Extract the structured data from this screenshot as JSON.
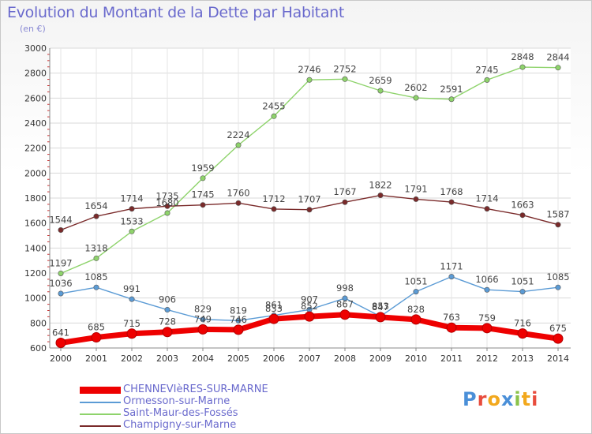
{
  "title": "Evolution du Montant de la Dette par Habitant",
  "unit": "(en €)",
  "logo": {
    "text": "Proxiti",
    "colors": [
      "#4a8fd8",
      "#e84c3d",
      "#f2a81d",
      "#4a8fd8",
      "#8bc34a",
      "#f2a81d",
      "#e84c3d"
    ]
  },
  "chart_data": {
    "type": "line",
    "categories": [
      "2000",
      "2001",
      "2002",
      "2003",
      "2004",
      "2005",
      "2006",
      "2007",
      "2008",
      "2009",
      "2010",
      "2011",
      "2012",
      "2013",
      "2014"
    ],
    "ylim": [
      600,
      3000
    ],
    "yticks": [
      "600",
      "800",
      "1000",
      "1200",
      "1400",
      "1600",
      "1800",
      "2000",
      "2200",
      "2400",
      "2600",
      "2800",
      "3000"
    ],
    "grid": true,
    "legend_position": "bottom-left",
    "series": [
      {
        "name": "CHENNEVIèRES-SUR-MARNE",
        "color": "#ee0000",
        "values": [
          641,
          685,
          715,
          728,
          749,
          746,
          833,
          852,
          867,
          847,
          828,
          763,
          759,
          716,
          675
        ],
        "labels": [
          "641",
          "685",
          "715",
          "728",
          "749",
          "746",
          "833",
          "852",
          "867",
          "847",
          "828",
          "763",
          "759",
          "716",
          "675"
        ]
      },
      {
        "name": "Ormesson-sur-Marne",
        "color": "#5b9bd5",
        "values": [
          1036,
          1085,
          991,
          906,
          829,
          819,
          861,
          907,
          998,
          853,
          1051,
          1171,
          1066,
          1051,
          1085
        ],
        "labels": [
          "1036",
          "1085",
          "991",
          "906",
          "829",
          "819",
          "861",
          "907",
          "998",
          "853",
          "1051",
          "1171",
          "1066",
          "1051",
          "1085"
        ]
      },
      {
        "name": "Saint-Maur-des-Fossés",
        "color": "#8ed36b",
        "values": [
          1197,
          1318,
          1533,
          1680,
          1959,
          2224,
          2455,
          2746,
          2752,
          2659,
          2602,
          2591,
          2745,
          2848,
          2844
        ],
        "labels": [
          "1197",
          "1318",
          "1533",
          "1680",
          "1959",
          "2224",
          "2455",
          "2746",
          "2752",
          "2659",
          "2602",
          "2591",
          "2745",
          "2848",
          "2844"
        ]
      },
      {
        "name": "Champigny-sur-Marne",
        "color": "#7a2a2a",
        "values": [
          1544,
          1654,
          1714,
          1735,
          1745,
          1760,
          1712,
          1707,
          1767,
          1822,
          1791,
          1768,
          1714,
          1663,
          1587
        ],
        "labels": [
          "1544",
          "1654",
          "1714",
          "1735",
          "1745",
          "1760",
          "1712",
          "1707",
          "1767",
          "1822",
          "1791",
          "1768",
          "1714",
          "1663",
          "1587"
        ]
      }
    ]
  }
}
